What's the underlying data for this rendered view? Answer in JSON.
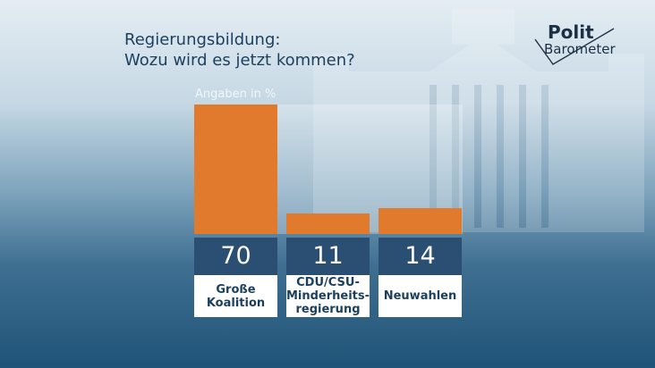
{
  "header": {
    "title_line1": "Regierungsbildung:",
    "title_line2": "Wozu wird es jetzt kommen?"
  },
  "logo": {
    "line1": "Polit",
    "line2": "Barometer"
  },
  "colors": {
    "bar": "#e17a2c",
    "value_box": "#2a4f72",
    "title": "#1b3f5e"
  },
  "chart_data": {
    "type": "bar",
    "unit_label": "Angaben in %",
    "categories": [
      "Große\nKoalition",
      "CDU/CSU-\nMinderheits-\nregierung",
      "Neuwahlen"
    ],
    "values": [
      70,
      11,
      14
    ],
    "value_labels": [
      "70",
      "11",
      "14"
    ],
    "ylim": [
      0,
      70
    ]
  }
}
